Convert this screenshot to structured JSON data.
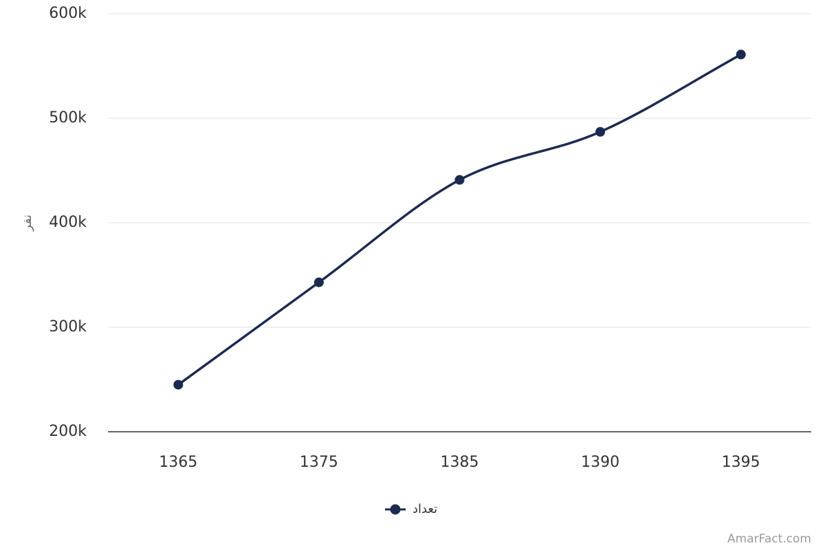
{
  "chart_data": {
    "type": "line",
    "y_label": "نفر",
    "categories": [
      "1365",
      "1375",
      "1385",
      "1390",
      "1395"
    ],
    "series": [
      {
        "name": "تعداد",
        "color": "#1b2a4e",
        "values": [
          245000,
          343000,
          441000,
          487000,
          561000
        ]
      }
    ],
    "ylim": [
      200000,
      600000
    ],
    "yticks": [
      {
        "value": 200000,
        "label": "200k"
      },
      {
        "value": 300000,
        "label": "300k"
      },
      {
        "value": 400000,
        "label": "400k"
      },
      {
        "value": 500000,
        "label": "500k"
      },
      {
        "value": 600000,
        "label": "600k"
      }
    ],
    "grid": true,
    "legend": "bottom"
  },
  "credit": "AmarFact.com"
}
